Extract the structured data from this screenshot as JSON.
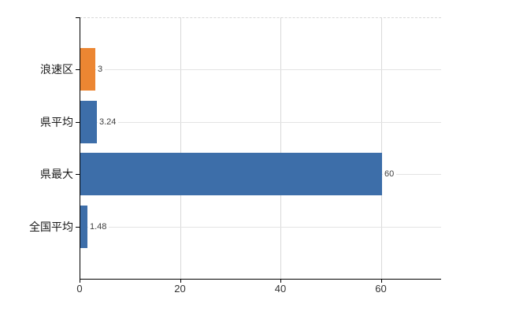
{
  "chart": {
    "background": "#ffffff",
    "axis_color": "#000000",
    "vertical_gridline_color": "#d9d9d9",
    "row_line_color": "#e3e3e3",
    "top_border_color": "#d8d8d8",
    "value_label_color": "#404040",
    "tick_label_color": "#333333",
    "category_label_color": "#1a1a1a",
    "orange": "#ec8632",
    "blue": "#3d6ea9"
  },
  "chart_data": {
    "type": "bar",
    "orientation": "horizontal",
    "title": "",
    "xlabel": "",
    "ylabel": "",
    "categories": [
      "浪速区",
      "県平均",
      "県最大",
      "全国平均"
    ],
    "values": [
      3,
      3.24,
      60,
      1.48
    ],
    "value_labels": [
      "3",
      "3.24",
      "60",
      "1.48"
    ],
    "bar_colors": [
      "#ec8632",
      "#3d6ea9",
      "#3d6ea9",
      "#3d6ea9"
    ],
    "xlim": [
      0,
      72
    ],
    "xticks": [
      "0",
      "20",
      "40",
      "60"
    ],
    "xtick_values": [
      0,
      20,
      40,
      60
    ],
    "grid": "vertical gridlines at x ticks, light horizontal leader line at each bar row, dashed top border",
    "legend": "none"
  }
}
